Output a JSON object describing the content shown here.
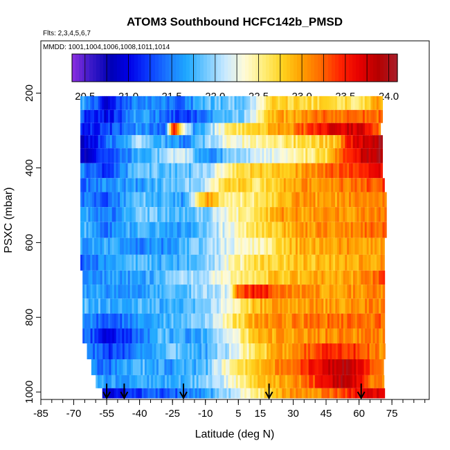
{
  "chart_data": {
    "type": "heatmap",
    "title": "ATOM3 Southbound HCFC142b_PMSD",
    "flights_note": "Flts: 2,3,4,5,6,7",
    "dates_note": "MMDD: 1001,1004,1006,1008,1011,1014",
    "xlabel": "Latitude (deg N)",
    "ylabel": "PSXC (mbar)",
    "xlim": [
      -85,
      92
    ],
    "ylim": [
      1020,
      60
    ],
    "x_ticks": [
      -85,
      -70,
      -55,
      -40,
      -25,
      -10,
      5,
      15,
      30,
      45,
      60,
      75
    ],
    "y_ticks": [
      200,
      400,
      600,
      800,
      1000
    ],
    "colorbar": {
      "min": 20.35,
      "max": 24.1,
      "ticks": [
        20.5,
        21.0,
        21.5,
        22.0,
        22.5,
        23.0,
        23.5,
        24.0
      ],
      "tick_labels": [
        "20.5",
        "21.0",
        "21.5",
        "22.0",
        "22.5",
        "23.0",
        "23.5",
        "24.0"
      ],
      "colors": [
        "#8b2fe0",
        "#3a19c8",
        "#0000b5",
        "#0000e8",
        "#0a3bff",
        "#1a78ff",
        "#1fa9ff",
        "#73c9ff",
        "#c8e9ff",
        "#fffbd8",
        "#ffee7a",
        "#ffd21e",
        "#ff9f00",
        "#ff6a00",
        "#ff2400",
        "#e70000",
        "#b50000",
        "#a81e2a"
      ]
    },
    "pressure_levels_mbar": [
      225,
      265,
      295,
      330,
      365,
      410,
      445,
      485,
      525,
      565,
      610,
      655,
      695,
      730,
      770,
      810,
      850,
      890,
      935,
      975,
      1005
    ],
    "rows": [
      {
        "p": 225,
        "x0": -67,
        "x1": 70,
        "pts": [
          [
            -67,
            21.8
          ],
          [
            -55,
            21.0
          ],
          [
            -40,
            21.6
          ],
          [
            -20,
            21.4
          ],
          [
            -10,
            21.8
          ],
          [
            5,
            21.9
          ],
          [
            10,
            22.0
          ],
          [
            20,
            22.7
          ],
          [
            45,
            22.7
          ],
          [
            60,
            22.6
          ],
          [
            70,
            23.0
          ]
        ]
      },
      {
        "p": 265,
        "x0": -67,
        "x1": 70,
        "pts": [
          [
            -67,
            21.3
          ],
          [
            -55,
            21.0
          ],
          [
            -40,
            21.7
          ],
          [
            -20,
            21.2
          ],
          [
            0,
            21.8
          ],
          [
            10,
            22.0
          ],
          [
            20,
            22.9
          ],
          [
            45,
            23.2
          ],
          [
            60,
            23.2
          ],
          [
            70,
            23.2
          ]
        ]
      },
      {
        "p": 295,
        "x0": -67,
        "x1": 69,
        "pts": [
          [
            -67,
            21.2
          ],
          [
            -55,
            21.2
          ],
          [
            -40,
            21.6
          ],
          [
            -28,
            21.4
          ],
          [
            -25,
            23.5
          ],
          [
            -15,
            21.5
          ],
          [
            0,
            22.5
          ],
          [
            15,
            22.8
          ],
          [
            30,
            23.1
          ],
          [
            45,
            23.6
          ],
          [
            60,
            23.8
          ],
          [
            69,
            23.2
          ]
        ]
      },
      {
        "p": 330,
        "x0": -67,
        "x1": 70,
        "pts": [
          [
            -67,
            20.8
          ],
          [
            -55,
            21.4
          ],
          [
            -40,
            22.0
          ],
          [
            -20,
            21.5
          ],
          [
            0,
            22.3
          ],
          [
            15,
            22.4
          ],
          [
            35,
            22.7
          ],
          [
            50,
            22.8
          ],
          [
            55,
            23.5
          ],
          [
            62,
            23.8
          ],
          [
            70,
            24.0
          ]
        ]
      },
      {
        "p": 365,
        "x0": -67,
        "x1": 70,
        "pts": [
          [
            -67,
            20.8
          ],
          [
            -55,
            21.3
          ],
          [
            -40,
            21.7
          ],
          [
            -20,
            22.2
          ],
          [
            -10,
            21.5
          ],
          [
            5,
            22.0
          ],
          [
            20,
            22.2
          ],
          [
            45,
            22.7
          ],
          [
            55,
            23.4
          ],
          [
            62,
            23.8
          ],
          [
            70,
            24.0
          ]
        ]
      },
      {
        "p": 410,
        "x0": -67,
        "x1": 70,
        "pts": [
          [
            -67,
            21.5
          ],
          [
            -55,
            21.2
          ],
          [
            -40,
            21.9
          ],
          [
            -20,
            21.8
          ],
          [
            -10,
            22.0
          ],
          [
            0,
            22.5
          ],
          [
            10,
            22.7
          ],
          [
            25,
            22.8
          ],
          [
            40,
            23.1
          ],
          [
            55,
            23.3
          ],
          [
            70,
            23.6
          ]
        ]
      },
      {
        "p": 445,
        "x0": -67,
        "x1": 71,
        "pts": [
          [
            -67,
            21.4
          ],
          [
            -55,
            21.6
          ],
          [
            -40,
            21.6
          ],
          [
            -25,
            21.9
          ],
          [
            -10,
            22.1
          ],
          [
            0,
            22.8
          ],
          [
            15,
            22.6
          ],
          [
            30,
            23.0
          ],
          [
            45,
            23.1
          ],
          [
            60,
            23.2
          ],
          [
            71,
            23.4
          ]
        ]
      },
      {
        "p": 485,
        "x0": -67,
        "x1": 72,
        "pts": [
          [
            -67,
            21.5
          ],
          [
            -55,
            21.3
          ],
          [
            -40,
            21.9
          ],
          [
            -20,
            21.6
          ],
          [
            -10,
            23.0
          ],
          [
            0,
            22.5
          ],
          [
            15,
            22.6
          ],
          [
            30,
            23.0
          ],
          [
            50,
            23.0
          ],
          [
            72,
            23.2
          ]
        ]
      },
      {
        "p": 525,
        "x0": -67,
        "x1": 72,
        "pts": [
          [
            -67,
            21.8
          ],
          [
            -55,
            21.4
          ],
          [
            -40,
            21.9
          ],
          [
            -25,
            21.8
          ],
          [
            -10,
            21.9
          ],
          [
            0,
            22.3
          ],
          [
            10,
            22.6
          ],
          [
            25,
            23.0
          ],
          [
            45,
            23.0
          ],
          [
            72,
            23.1
          ]
        ]
      },
      {
        "p": 565,
        "x0": -67,
        "x1": 72,
        "pts": [
          [
            -67,
            21.8
          ],
          [
            -55,
            21.5
          ],
          [
            -40,
            21.8
          ],
          [
            -20,
            21.6
          ],
          [
            -5,
            22.1
          ],
          [
            5,
            22.4
          ],
          [
            20,
            22.8
          ],
          [
            35,
            23.0
          ],
          [
            50,
            23.1
          ],
          [
            72,
            23.2
          ]
        ]
      },
      {
        "p": 610,
        "x0": -67,
        "x1": 71,
        "pts": [
          [
            -67,
            21.6
          ],
          [
            -55,
            21.7
          ],
          [
            -40,
            21.5
          ],
          [
            -25,
            21.6
          ],
          [
            -10,
            22.0
          ],
          [
            0,
            22.2
          ],
          [
            15,
            22.4
          ],
          [
            30,
            22.9
          ],
          [
            50,
            23.0
          ],
          [
            71,
            23.0
          ]
        ]
      },
      {
        "p": 655,
        "x0": -67,
        "x1": 71,
        "pts": [
          [
            -67,
            21.3
          ],
          [
            -55,
            21.6
          ],
          [
            -40,
            21.8
          ],
          [
            -25,
            21.7
          ],
          [
            -10,
            21.9
          ],
          [
            0,
            22.3
          ],
          [
            15,
            22.7
          ],
          [
            30,
            22.8
          ],
          [
            50,
            22.9
          ],
          [
            71,
            23.0
          ]
        ]
      },
      {
        "p": 695,
        "x0": -66,
        "x1": 71,
        "pts": [
          [
            -66,
            21.5
          ],
          [
            -55,
            21.6
          ],
          [
            -40,
            21.6
          ],
          [
            -25,
            21.9
          ],
          [
            -10,
            22.1
          ],
          [
            0,
            22.4
          ],
          [
            20,
            22.8
          ],
          [
            40,
            22.9
          ],
          [
            60,
            23.0
          ],
          [
            71,
            23.3
          ]
        ]
      },
      {
        "p": 730,
        "x0": -66,
        "x1": 71,
        "pts": [
          [
            -66,
            21.7
          ],
          [
            -55,
            21.6
          ],
          [
            -40,
            21.6
          ],
          [
            -25,
            21.8
          ],
          [
            -10,
            22.0
          ],
          [
            0,
            22.2
          ],
          [
            5,
            23.2
          ],
          [
            15,
            23.6
          ],
          [
            25,
            23.1
          ],
          [
            45,
            23.0
          ],
          [
            71,
            23.1
          ]
        ]
      },
      {
        "p": 770,
        "x0": -66,
        "x1": 71,
        "pts": [
          [
            -66,
            21.8
          ],
          [
            -55,
            21.7
          ],
          [
            -40,
            21.8
          ],
          [
            -25,
            21.7
          ],
          [
            -10,
            21.9
          ],
          [
            0,
            22.3
          ],
          [
            15,
            22.9
          ],
          [
            30,
            23.0
          ],
          [
            50,
            23.0
          ],
          [
            71,
            23.1
          ]
        ]
      },
      {
        "p": 810,
        "x0": -66,
        "x1": 71,
        "pts": [
          [
            -66,
            21.6
          ],
          [
            -55,
            21.3
          ],
          [
            -40,
            21.6
          ],
          [
            -25,
            21.8
          ],
          [
            -10,
            21.9
          ],
          [
            0,
            22.5
          ],
          [
            15,
            23.0
          ],
          [
            30,
            23.1
          ],
          [
            50,
            23.2
          ],
          [
            71,
            23.2
          ]
        ]
      },
      {
        "p": 850,
        "x0": -66,
        "x1": 71,
        "pts": [
          [
            -66,
            21.5
          ],
          [
            -55,
            21.0
          ],
          [
            -45,
            21.2
          ],
          [
            -30,
            21.8
          ],
          [
            -15,
            21.6
          ],
          [
            0,
            22.2
          ],
          [
            15,
            22.9
          ],
          [
            30,
            23.0
          ],
          [
            50,
            23.1
          ],
          [
            71,
            23.1
          ]
        ]
      },
      {
        "p": 890,
        "x0": -64,
        "x1": 71,
        "pts": [
          [
            -64,
            21.6
          ],
          [
            -55,
            21.2
          ],
          [
            -40,
            21.5
          ],
          [
            -25,
            21.9
          ],
          [
            -10,
            21.7
          ],
          [
            0,
            22.1
          ],
          [
            15,
            22.7
          ],
          [
            30,
            23.1
          ],
          [
            45,
            23.5
          ],
          [
            60,
            23.4
          ],
          [
            71,
            23.0
          ]
        ]
      },
      {
        "p": 935,
        "x0": -62,
        "x1": 71,
        "pts": [
          [
            -62,
            21.5
          ],
          [
            -55,
            21.4
          ],
          [
            -40,
            21.8
          ],
          [
            -25,
            21.6
          ],
          [
            -10,
            21.8
          ],
          [
            0,
            22.4
          ],
          [
            15,
            22.9
          ],
          [
            30,
            23.2
          ],
          [
            45,
            23.7
          ],
          [
            55,
            24.0
          ],
          [
            65,
            23.3
          ],
          [
            71,
            23.0
          ]
        ]
      },
      {
        "p": 975,
        "x0": -60,
        "x1": 71,
        "pts": [
          [
            -60,
            21.8
          ],
          [
            -55,
            21.6
          ],
          [
            -40,
            21.7
          ],
          [
            -25,
            21.7
          ],
          [
            -10,
            21.9
          ],
          [
            0,
            22.2
          ],
          [
            15,
            22.9
          ],
          [
            30,
            23.0
          ],
          [
            45,
            23.6
          ],
          [
            55,
            24.0
          ],
          [
            65,
            23.2
          ],
          [
            71,
            23.2
          ]
        ]
      },
      {
        "p": 1005,
        "x0": -57,
        "x1": 71,
        "pts": [
          [
            -57,
            21.0
          ],
          [
            -45,
            21.1
          ],
          [
            -35,
            21.3
          ],
          [
            -20,
            21.4
          ],
          [
            -10,
            21.6
          ],
          [
            0,
            22.0
          ],
          [
            15,
            22.6
          ],
          [
            30,
            23.1
          ],
          [
            45,
            23.1
          ],
          [
            55,
            23.4
          ],
          [
            65,
            23.8
          ],
          [
            71,
            23.6
          ]
        ]
      }
    ],
    "profile_latitudes": [
      -55,
      -47,
      -20,
      19,
      61
    ]
  }
}
